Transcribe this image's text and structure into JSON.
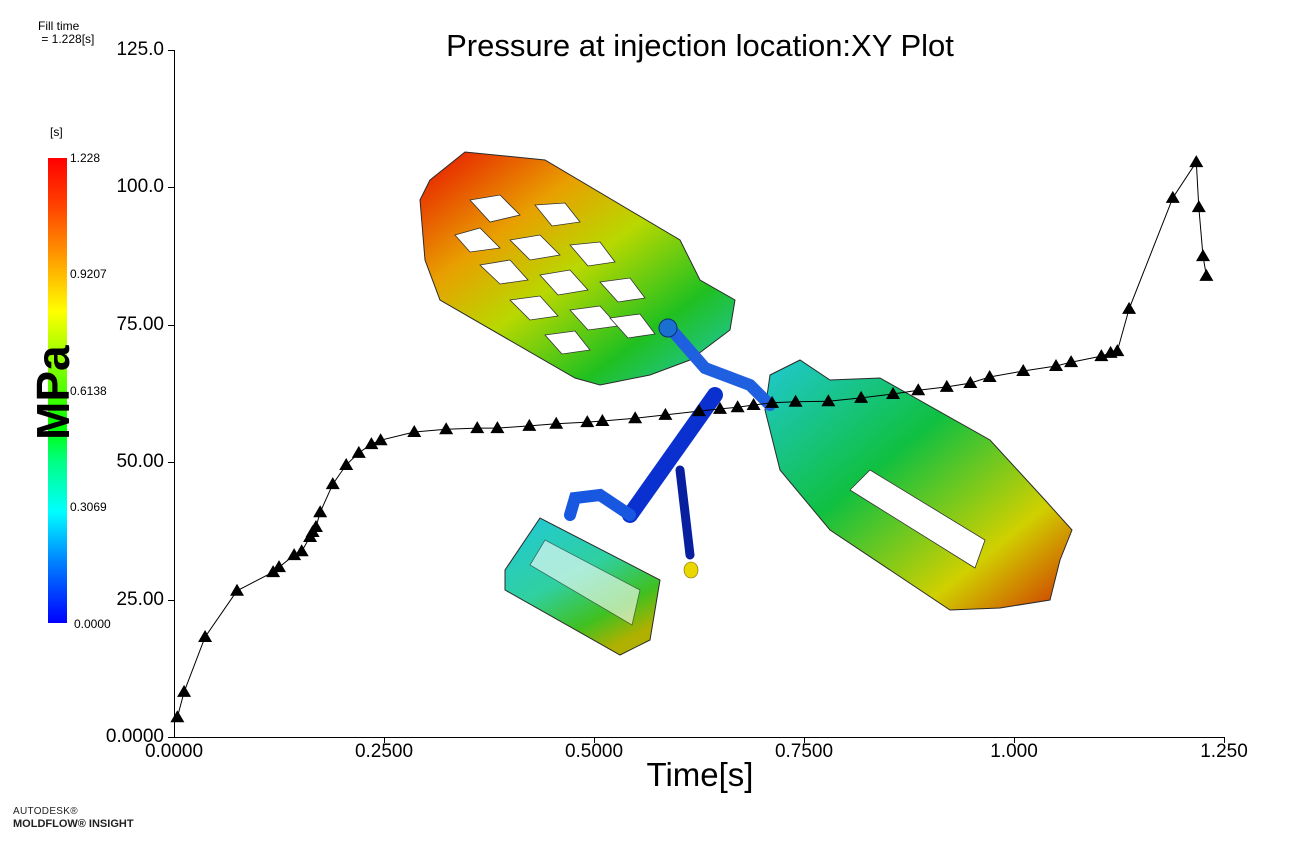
{
  "header": {
    "result_name": "Fill time",
    "result_value": " = 1.228[s]"
  },
  "legend": {
    "unit": "[s]",
    "labels": [
      "1.228",
      "0.9207",
      "0.6138",
      "0.3069",
      "0.0000"
    ],
    "colors": [
      "#ff0000",
      "#ffff00",
      "#00ff00",
      "#00ffff",
      "#0000ff"
    ]
  },
  "branding": {
    "line1": "AUTODESK®",
    "line2": "MOLDFLOW® INSIGHT"
  },
  "chart_data": {
    "type": "line",
    "title": "Pressure at injection location:XY Plot",
    "xlabel": "Time[s]",
    "ylabel": "MPa",
    "xlim": [
      0,
      1.25
    ],
    "ylim": [
      0,
      125
    ],
    "grid": false,
    "marker": "triangle",
    "x_ticks": [
      "0.0000",
      "0.2500",
      "0.5000",
      "0.7500",
      "1.000",
      "1.250"
    ],
    "y_ticks": [
      "0.0000",
      "25.00",
      "50.00",
      "75.00",
      "100.0",
      "125.0"
    ],
    "series": [
      {
        "name": "Pressure at injection location",
        "x": [
          0.004,
          0.012,
          0.037,
          0.075,
          0.118,
          0.125,
          0.143,
          0.152,
          0.162,
          0.165,
          0.169,
          0.174,
          0.189,
          0.205,
          0.22,
          0.235,
          0.246,
          0.286,
          0.324,
          0.361,
          0.385,
          0.423,
          0.455,
          0.492,
          0.51,
          0.549,
          0.585,
          0.625,
          0.65,
          0.671,
          0.69,
          0.712,
          0.74,
          0.779,
          0.818,
          0.856,
          0.886,
          0.92,
          0.948,
          0.971,
          1.011,
          1.05,
          1.068,
          1.104,
          1.115,
          1.123,
          1.137,
          1.189,
          1.217,
          1.22,
          1.225,
          1.229
        ],
        "y": [
          3.6,
          8.2,
          18.2,
          26.6,
          30.0,
          30.9,
          33.1,
          33.8,
          36.4,
          37.3,
          38.2,
          40.9,
          46.0,
          49.5,
          51.7,
          53.3,
          54.0,
          55.5,
          56.0,
          56.2,
          56.2,
          56.6,
          57.0,
          57.3,
          57.5,
          58.0,
          58.6,
          59.3,
          59.7,
          60.0,
          60.4,
          60.8,
          61.0,
          61.1,
          61.7,
          62.4,
          63.1,
          63.7,
          64.4,
          65.5,
          66.6,
          67.5,
          68.2,
          69.3,
          69.9,
          70.2,
          77.9,
          98.1,
          104.6,
          96.4,
          87.5,
          83.9
        ]
      }
    ]
  }
}
